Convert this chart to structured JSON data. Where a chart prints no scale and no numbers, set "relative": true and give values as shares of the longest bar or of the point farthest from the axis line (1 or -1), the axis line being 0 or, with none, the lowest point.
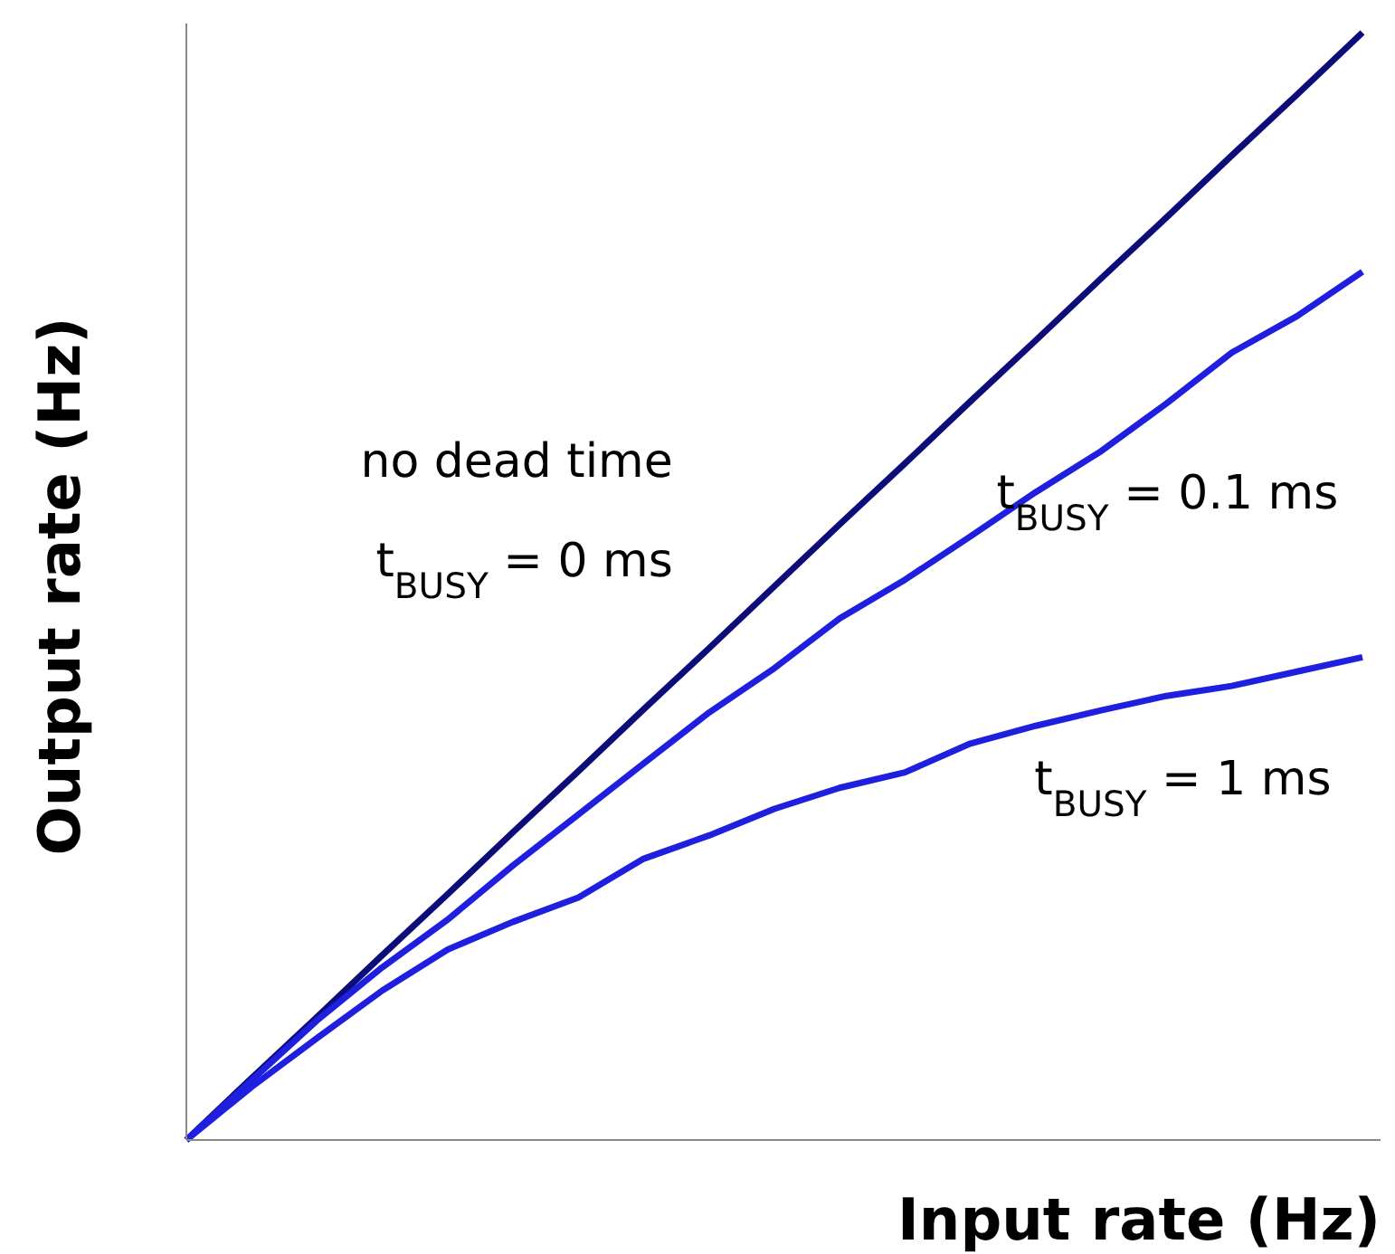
{
  "chart_data": {
    "type": "line",
    "relative": true,
    "xlabel": "Input rate (Hz)",
    "ylabel": "Output rate (Hz)",
    "categories": [
      null,
      null,
      null,
      null,
      null,
      null,
      null,
      null,
      null,
      null,
      null,
      null,
      null,
      null,
      null,
      null,
      null,
      null,
      null
    ],
    "series": [
      {
        "name": "t$_{BUSY}$ = 0 ms",
        "color": "#0c0c7a",
        "values": [
          0,
          0.056,
          0.111,
          0.167,
          0.222,
          0.278,
          0.333,
          0.389,
          0.444,
          0.5,
          0.556,
          0.611,
          0.667,
          0.722,
          0.778,
          0.833,
          0.889,
          0.944,
          1
        ]
      },
      {
        "name": "t$_{BUSY}$ = 0.1 ms",
        "color": "#1f1fe0",
        "values": [
          0,
          0.054,
          0.108,
          0.156,
          0.199,
          0.248,
          0.294,
          0.34,
          0.386,
          0.426,
          0.471,
          0.506,
          0.545,
          0.585,
          0.622,
          0.665,
          0.711,
          0.744,
          0.784
        ]
      },
      {
        "name": "t$_{BUSY}$ = 1 ms",
        "color": "#1f1fe0",
        "values": [
          0,
          0.048,
          0.092,
          0.135,
          0.172,
          0.197,
          0.219,
          0.254,
          0.275,
          0.299,
          0.318,
          0.332,
          0.358,
          0.374,
          0.388,
          0.401,
          0.41,
          0.423,
          0.436
        ]
      }
    ],
    "annotations": [
      "no dead time"
    ],
    "line_style": "solid",
    "marker": "none",
    "grid": false,
    "legend": false
  }
}
